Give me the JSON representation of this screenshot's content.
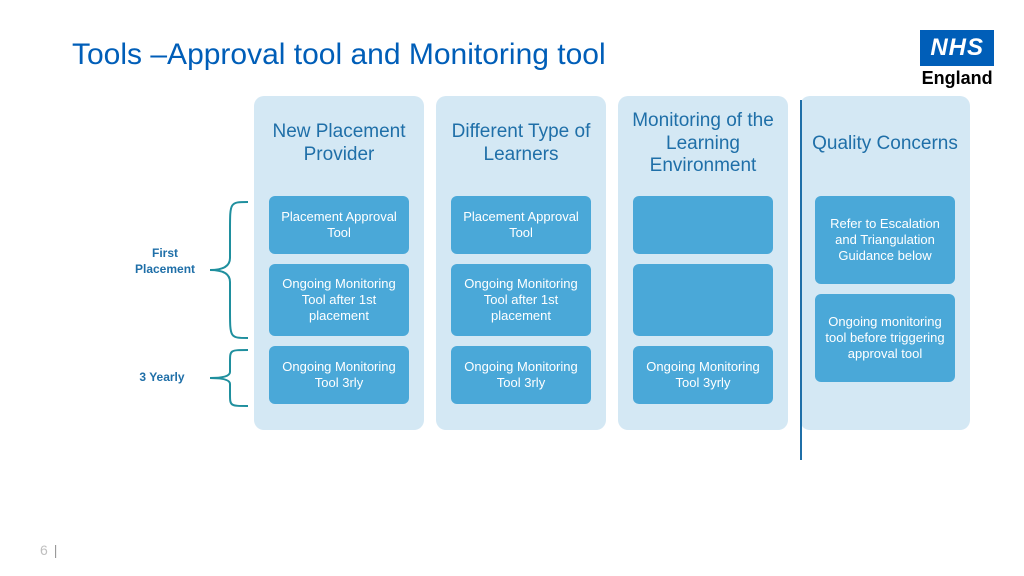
{
  "title": "Tools –Approval tool and Monitoring tool",
  "logo": {
    "top": "NHS",
    "sub": "England",
    "bg": "#005eb8"
  },
  "colors": {
    "title": "#005eb8",
    "col_bg": "#d4e8f4",
    "col_title": "#1f6fa8",
    "cell_bg": "#4aa8d8",
    "divider": "#1f6fa8",
    "bracket": "#1f8f9e",
    "row_label": "#1f6fa8"
  },
  "row_labels": {
    "first": "First Placement",
    "second": "3 Yearly"
  },
  "page": "6",
  "columns": [
    {
      "title": "New Placement Provider",
      "cells": [
        {
          "text": "Placement Approval Tool",
          "h": "h1"
        },
        {
          "text": "Ongoing Monitoring Tool after 1st placement",
          "h": "h2"
        },
        {
          "text": "Ongoing Monitoring Tool 3rly",
          "h": "h1b"
        }
      ]
    },
    {
      "title": "Different Type of Learners",
      "cells": [
        {
          "text": "Placement Approval Tool",
          "h": "h1"
        },
        {
          "text": "Ongoing Monitoring Tool after 1st placement",
          "h": "h2"
        },
        {
          "text": "Ongoing Monitoring Tool 3rly",
          "h": "h1b"
        }
      ]
    },
    {
      "title": "Monitoring of the Learning Environment",
      "cells": [
        {
          "text": "",
          "h": "h1"
        },
        {
          "text": "",
          "h": "h2"
        },
        {
          "text": "Ongoing Monitoring Tool 3yrly",
          "h": "h1b"
        }
      ]
    },
    {
      "title": "Quality Concerns",
      "cells": [
        {
          "text": "Refer to Escalation and Triangulation Guidance below",
          "h": "tall"
        },
        {
          "text": "Ongoing monitoring tool before triggering approval tool",
          "h": "tall"
        }
      ]
    }
  ]
}
